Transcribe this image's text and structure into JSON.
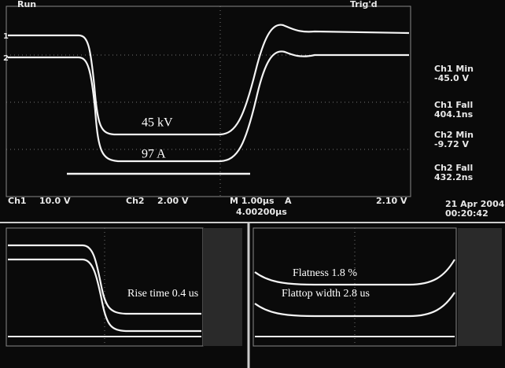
{
  "top": {
    "status": "Run",
    "trigger": "Trig'd",
    "ch1_marker": "1",
    "ch2_marker": "2",
    "annotations": [
      "45 kV",
      "97 A"
    ],
    "measurements": [
      {
        "label": "Ch1 Min",
        "value": "-45.0 V"
      },
      {
        "label": "Ch1 Fall",
        "value": "404.1ns"
      },
      {
        "label": "Ch2 Min",
        "value": "-9.72 V"
      },
      {
        "label": "Ch2 Fall",
        "value": "432.2ns"
      }
    ],
    "settings": {
      "ch1": "Ch1",
      "ch1_scale": "10.0 V",
      "ch2": "Ch2",
      "ch2_scale": "2.00 V",
      "timebase": "M 1.00µs",
      "trigger_mode": "A",
      "trigger_level": "2.10 V",
      "position": "4.00200µs"
    },
    "date": "21 Apr 2004",
    "time": "00:20:42"
  },
  "bottom_left": {
    "annotation": "Rise time 0.4 us"
  },
  "bottom_right": {
    "annotations": [
      "Flatness 1.8 %",
      "Flattop width 2.8 us"
    ]
  }
}
